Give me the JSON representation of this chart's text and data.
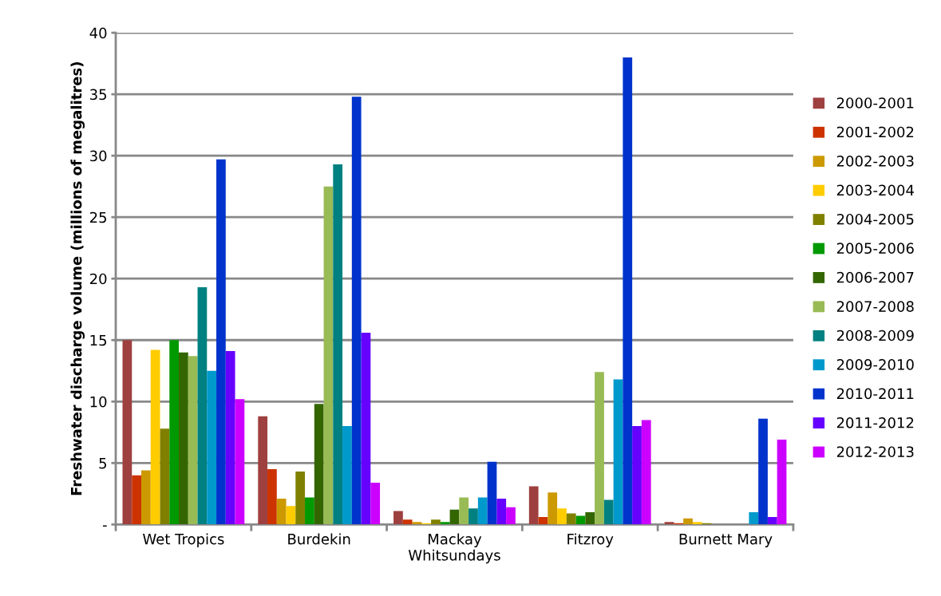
{
  "chart_data": {
    "type": "bar",
    "ylabel": "Freshwater discharge volume (millions of megalitres)",
    "categories": [
      "Wet Tropics",
      "Burdekin",
      "Mackay\nWhitsundays",
      "Fitzroy",
      "Burnett Mary"
    ],
    "series": [
      {
        "name": "2000-2001",
        "color": "#9e4040",
        "values": [
          15.0,
          8.8,
          1.1,
          3.1,
          0.2
        ]
      },
      {
        "name": "2001-2002",
        "color": "#cc3300",
        "values": [
          4.0,
          4.5,
          0.4,
          0.6,
          0.1
        ]
      },
      {
        "name": "2002-2003",
        "color": "#cc9900",
        "values": [
          4.4,
          2.1,
          0.2,
          2.6,
          0.5
        ]
      },
      {
        "name": "2003-2004",
        "color": "#ffcc00",
        "values": [
          14.2,
          1.5,
          0.1,
          1.3,
          0.2
        ]
      },
      {
        "name": "2004-2005",
        "color": "#808000",
        "values": [
          7.8,
          4.3,
          0.4,
          0.9,
          0.1
        ]
      },
      {
        "name": "2005-2006",
        "color": "#009900",
        "values": [
          15.0,
          2.2,
          0.2,
          0.7,
          0
        ]
      },
      {
        "name": "2006-2007",
        "color": "#336600",
        "values": [
          14.0,
          9.8,
          1.2,
          1.0,
          0
        ]
      },
      {
        "name": "2007-2008",
        "color": "#99bb55",
        "values": [
          13.7,
          27.5,
          2.2,
          12.4,
          0
        ]
      },
      {
        "name": "2008-2009",
        "color": "#008080",
        "values": [
          19.3,
          29.3,
          1.3,
          2.0,
          0
        ]
      },
      {
        "name": "2009-2010",
        "color": "#0099cc",
        "values": [
          12.5,
          8.0,
          2.2,
          11.8,
          1.0
        ]
      },
      {
        "name": "2010-2011",
        "color": "#0033cc",
        "values": [
          29.7,
          34.8,
          5.1,
          38.0,
          8.6
        ]
      },
      {
        "name": "2011-2012",
        "color": "#6600ff",
        "values": [
          14.1,
          15.6,
          2.1,
          8.0,
          0.6
        ]
      },
      {
        "name": "2012-2013",
        "color": "#cc00ff",
        "values": [
          10.2,
          3.4,
          1.4,
          8.5,
          6.9
        ]
      }
    ],
    "ylim": [
      0,
      40
    ],
    "yticks": [
      {
        "value": 0,
        "label": "-"
      },
      5,
      10,
      15,
      20,
      25,
      30,
      35,
      40
    ],
    "grid": "y",
    "legend": "right"
  }
}
